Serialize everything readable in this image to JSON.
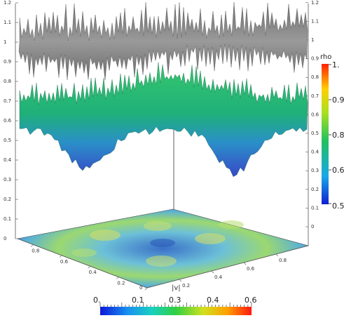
{
  "scene": {
    "left_axis_ticks": [
      "0",
      "0.1",
      "0.2",
      "0.3",
      "0.4",
      "0.5",
      "0.6",
      "0.7",
      "0.8",
      "0.9",
      "1",
      "1.1",
      "1.2"
    ],
    "right_axis_ticks": [
      "0",
      "0.1",
      "0.2",
      "0.3",
      "0.4",
      "0.5",
      "0.6",
      "0.7",
      "0.8",
      "0.9",
      "1",
      "1.1",
      "1.2"
    ],
    "floor_left_ticks": [
      "0.8",
      "0.6",
      "0.4",
      "0.2",
      "0"
    ],
    "floor_right_ticks": [
      "0.2",
      "0.4",
      "0.6",
      "0.8"
    ],
    "floor_corner_label": "0",
    "floor_axis_title": "|v|"
  },
  "colorbar_vertical": {
    "title": "rho",
    "labels": [
      "1.",
      "0.9",
      "0.8",
      "0.6",
      "0.5"
    ],
    "colors": [
      "#1020d0",
      "#18a8e8",
      "#20c060",
      "#a8e020",
      "#ffd000",
      "#ff2000"
    ]
  },
  "colorbar_horizontal": {
    "labels": [
      "0.",
      "0.1",
      "0.3",
      "0.4",
      "0.6"
    ],
    "colors": [
      "#0c18d8",
      "#1890f0",
      "#18d0c0",
      "#30d040",
      "#d0e020",
      "#ffa000",
      "#ff1810"
    ]
  },
  "surfaces": {
    "top_color": "#8a8a8a",
    "middle_top_color": "#30c070",
    "middle_bottom_color": "#3848c8",
    "floor_color": "#5aa0d8"
  }
}
